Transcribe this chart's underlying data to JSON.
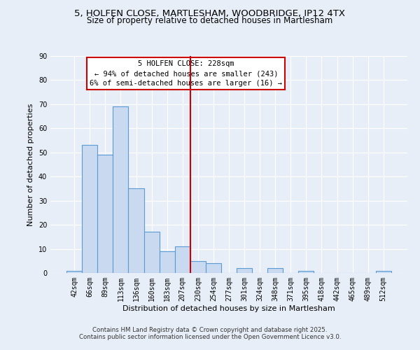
{
  "title": "5, HOLFEN CLOSE, MARTLESHAM, WOODBRIDGE, IP12 4TX",
  "subtitle": "Size of property relative to detached houses in Martlesham",
  "xlabel": "Distribution of detached houses by size in Martlesham",
  "ylabel": "Number of detached properties",
  "bar_labels": [
    "42sqm",
    "66sqm",
    "89sqm",
    "113sqm",
    "136sqm",
    "160sqm",
    "183sqm",
    "207sqm",
    "230sqm",
    "254sqm",
    "277sqm",
    "301sqm",
    "324sqm",
    "348sqm",
    "371sqm",
    "395sqm",
    "418sqm",
    "442sqm",
    "465sqm",
    "489sqm",
    "512sqm"
  ],
  "bar_values": [
    1,
    53,
    49,
    69,
    35,
    17,
    9,
    11,
    5,
    4,
    0,
    2,
    0,
    2,
    0,
    1,
    0,
    0,
    0,
    0,
    1
  ],
  "bar_color": "#c8d9f0",
  "bar_edgecolor": "#5b9bd5",
  "vline_color": "#cc0000",
  "annotation_box_text": "5 HOLFEN CLOSE: 228sqm\n← 94% of detached houses are smaller (243)\n6% of semi-detached houses are larger (16) →",
  "annotation_box_facecolor": "#ffffff",
  "annotation_box_edgecolor": "#cc0000",
  "ylim": [
    0,
    90
  ],
  "yticks": [
    0,
    10,
    20,
    30,
    40,
    50,
    60,
    70,
    80,
    90
  ],
  "bg_color": "#e8eef7",
  "grid_color": "#ffffff",
  "footer_line1": "Contains HM Land Registry data © Crown copyright and database right 2025.",
  "footer_line2": "Contains public sector information licensed under the Open Government Licence v3.0.",
  "title_fontsize": 9.5,
  "subtitle_fontsize": 8.5,
  "label_fontsize": 8,
  "tick_fontsize": 7,
  "annotation_fontsize": 7.5,
  "footer_fontsize": 6.2
}
